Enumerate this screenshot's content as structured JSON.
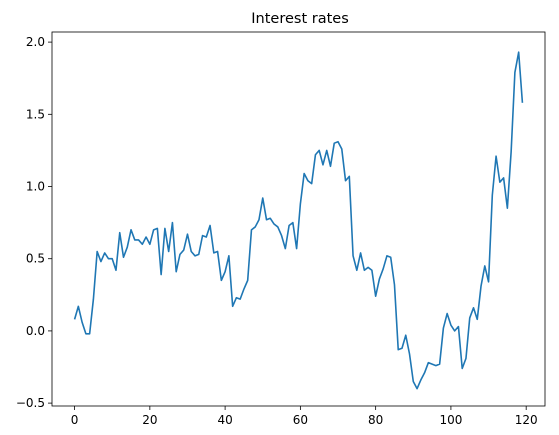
{
  "chart_data": {
    "type": "line",
    "title": "Interest rates",
    "xlabel": "",
    "ylabel": "",
    "xlim": [
      -6,
      125
    ],
    "ylim": [
      -0.52,
      2.07
    ],
    "xticks": [
      0,
      20,
      40,
      60,
      80,
      100,
      120
    ],
    "yticks": [
      -0.5,
      0.0,
      0.5,
      1.0,
      1.5,
      2.0
    ],
    "xtick_labels": [
      "0",
      "20",
      "40",
      "60",
      "80",
      "100",
      "120"
    ],
    "ytick_labels": [
      "−0.5",
      "0.0",
      "0.5",
      "1.0",
      "1.5",
      "2.0"
    ],
    "grid": false,
    "line_color": "#1f77b4",
    "series": [
      {
        "values": [
          0.08,
          0.17,
          0.06,
          -0.02,
          -0.02,
          0.22,
          0.55,
          0.48,
          0.54,
          0.5,
          0.5,
          0.42,
          0.68,
          0.51,
          0.58,
          0.7,
          0.63,
          0.63,
          0.6,
          0.65,
          0.6,
          0.7,
          0.71,
          0.39,
          0.71,
          0.55,
          0.75,
          0.41,
          0.53,
          0.56,
          0.67,
          0.55,
          0.52,
          0.53,
          0.66,
          0.65,
          0.73,
          0.54,
          0.55,
          0.35,
          0.41,
          0.52,
          0.17,
          0.23,
          0.22,
          0.29,
          0.35,
          0.7,
          0.72,
          0.77,
          0.92,
          0.77,
          0.78,
          0.74,
          0.72,
          0.66,
          0.57,
          0.73,
          0.75,
          0.57,
          0.88,
          1.09,
          1.04,
          1.02,
          1.22,
          1.25,
          1.15,
          1.25,
          1.14,
          1.3,
          1.31,
          1.26,
          1.04,
          1.07,
          0.52,
          0.42,
          0.54,
          0.42,
          0.44,
          0.42,
          0.24,
          0.36,
          0.43,
          0.52,
          0.51,
          0.32,
          -0.13,
          -0.12,
          -0.03,
          -0.16,
          -0.35,
          -0.4,
          -0.34,
          -0.29,
          -0.22,
          -0.23,
          -0.24,
          -0.23,
          0.02,
          0.12,
          0.04,
          0.0,
          0.03,
          -0.26,
          -0.19,
          0.09,
          0.16,
          0.08,
          0.31,
          0.45,
          0.34,
          0.94,
          1.21,
          1.03,
          1.06,
          0.85,
          1.24,
          1.79,
          1.93,
          1.58
        ]
      }
    ]
  }
}
